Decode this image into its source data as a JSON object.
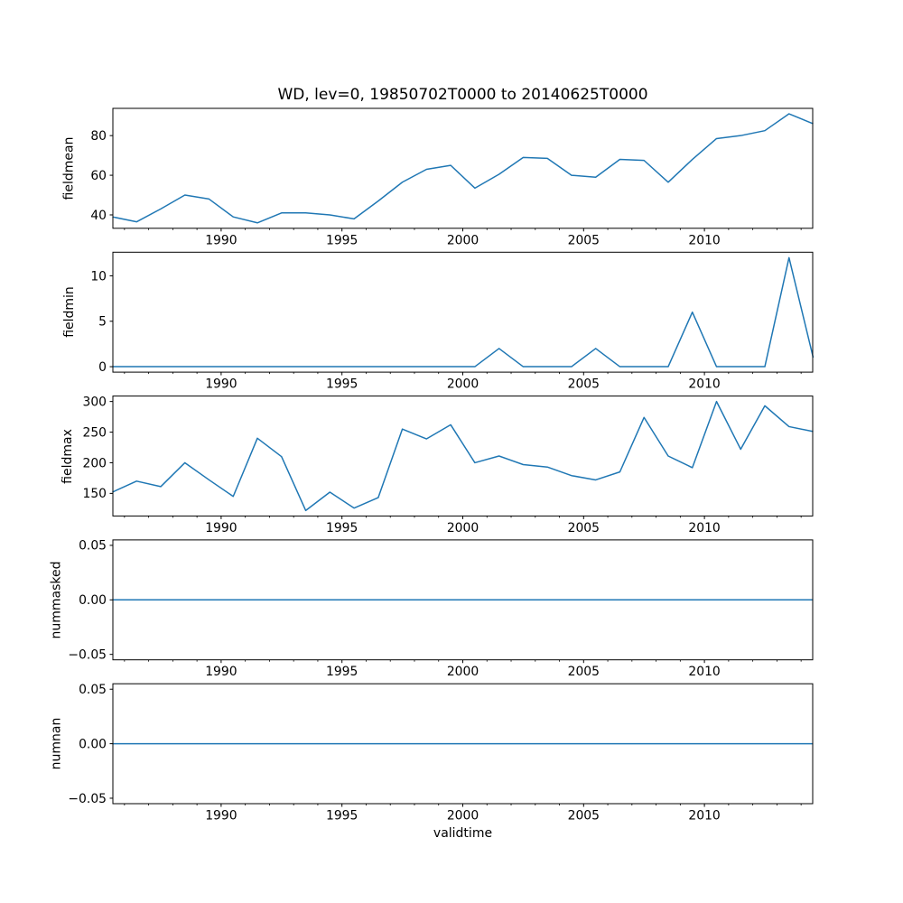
{
  "chart_data": {
    "type": "line",
    "title": "WD, lev=0, 19850702T0000 to 20140625T0000",
    "xlabel": "validtime",
    "line_color": "#1f77b4",
    "frame_color": "#000000",
    "legend": "none",
    "grid": false,
    "x": [
      1985.5,
      1986.5,
      1987.5,
      1988.5,
      1989.5,
      1990.5,
      1991.5,
      1992.5,
      1993.5,
      1994.5,
      1995.5,
      1996.5,
      1997.5,
      1998.5,
      1999.5,
      2000.5,
      2001.5,
      2002.5,
      2003.5,
      2004.5,
      2005.5,
      2006.5,
      2007.5,
      2008.5,
      2009.5,
      2010.5,
      2011.5,
      2012.5,
      2013.5,
      2014.5
    ],
    "xlim": [
      1985.52,
      2014.48
    ],
    "xticks_major": [
      1990,
      1995,
      2000,
      2005,
      2010
    ],
    "xtick_labels": [
      "1990",
      "1995",
      "2000",
      "2005",
      "2010"
    ],
    "xticks_minor": "every year",
    "panels": [
      {
        "ylabel": "fieldmean",
        "values": [
          39,
          36.5,
          43,
          50,
          48,
          39,
          36,
          41,
          41,
          40,
          38,
          47,
          56.5,
          63,
          65,
          53.5,
          60.5,
          69,
          68.5,
          60,
          59,
          68,
          67.5,
          56.5,
          68,
          78.5,
          80,
          82.5,
          91,
          86
        ],
        "yticks": [
          40,
          60,
          80
        ],
        "ytick_labels": [
          "40",
          "60",
          "80"
        ],
        "ylim": [
          33.25,
          93.75
        ]
      },
      {
        "ylabel": "fieldmin",
        "values": [
          0,
          0,
          0,
          0,
          0,
          0,
          0,
          0,
          0,
          0,
          0,
          0,
          0,
          0,
          0,
          0,
          2,
          0,
          0,
          0,
          2,
          0,
          0,
          0,
          6,
          0,
          0,
          0,
          12,
          1
        ],
        "yticks": [
          0,
          5,
          10
        ],
        "ytick_labels": [
          "0",
          "5",
          "10"
        ],
        "ylim": [
          -0.6,
          12.6
        ]
      },
      {
        "ylabel": "fieldmax",
        "values": [
          152,
          170,
          161,
          200,
          172,
          145,
          240,
          210,
          122,
          152,
          126,
          143,
          255,
          239,
          262,
          200,
          211,
          197,
          193,
          179,
          172,
          185,
          274,
          211,
          192,
          300,
          222,
          293,
          259,
          251
        ],
        "yticks": [
          150,
          200,
          250,
          300
        ],
        "ytick_labels": [
          "150",
          "200",
          "250",
          "300"
        ],
        "ylim": [
          113.1,
          308.9
        ]
      },
      {
        "ylabel": "nummasked",
        "values": [
          0,
          0,
          0,
          0,
          0,
          0,
          0,
          0,
          0,
          0,
          0,
          0,
          0,
          0,
          0,
          0,
          0,
          0,
          0,
          0,
          0,
          0,
          0,
          0,
          0,
          0,
          0,
          0,
          0,
          0
        ],
        "yticks": [
          -0.05,
          0,
          0.05
        ],
        "ytick_labels": [
          "−0.05",
          "0.00",
          "0.05"
        ],
        "ylim": [
          -0.055,
          0.055
        ]
      },
      {
        "ylabel": "numnan",
        "values": [
          0,
          0,
          0,
          0,
          0,
          0,
          0,
          0,
          0,
          0,
          0,
          0,
          0,
          0,
          0,
          0,
          0,
          0,
          0,
          0,
          0,
          0,
          0,
          0,
          0,
          0,
          0,
          0,
          0,
          0
        ],
        "yticks": [
          -0.05,
          0,
          0.05
        ],
        "ytick_labels": [
          "−0.05",
          "0.00",
          "0.05"
        ],
        "ylim": [
          -0.055,
          0.055
        ]
      }
    ]
  }
}
